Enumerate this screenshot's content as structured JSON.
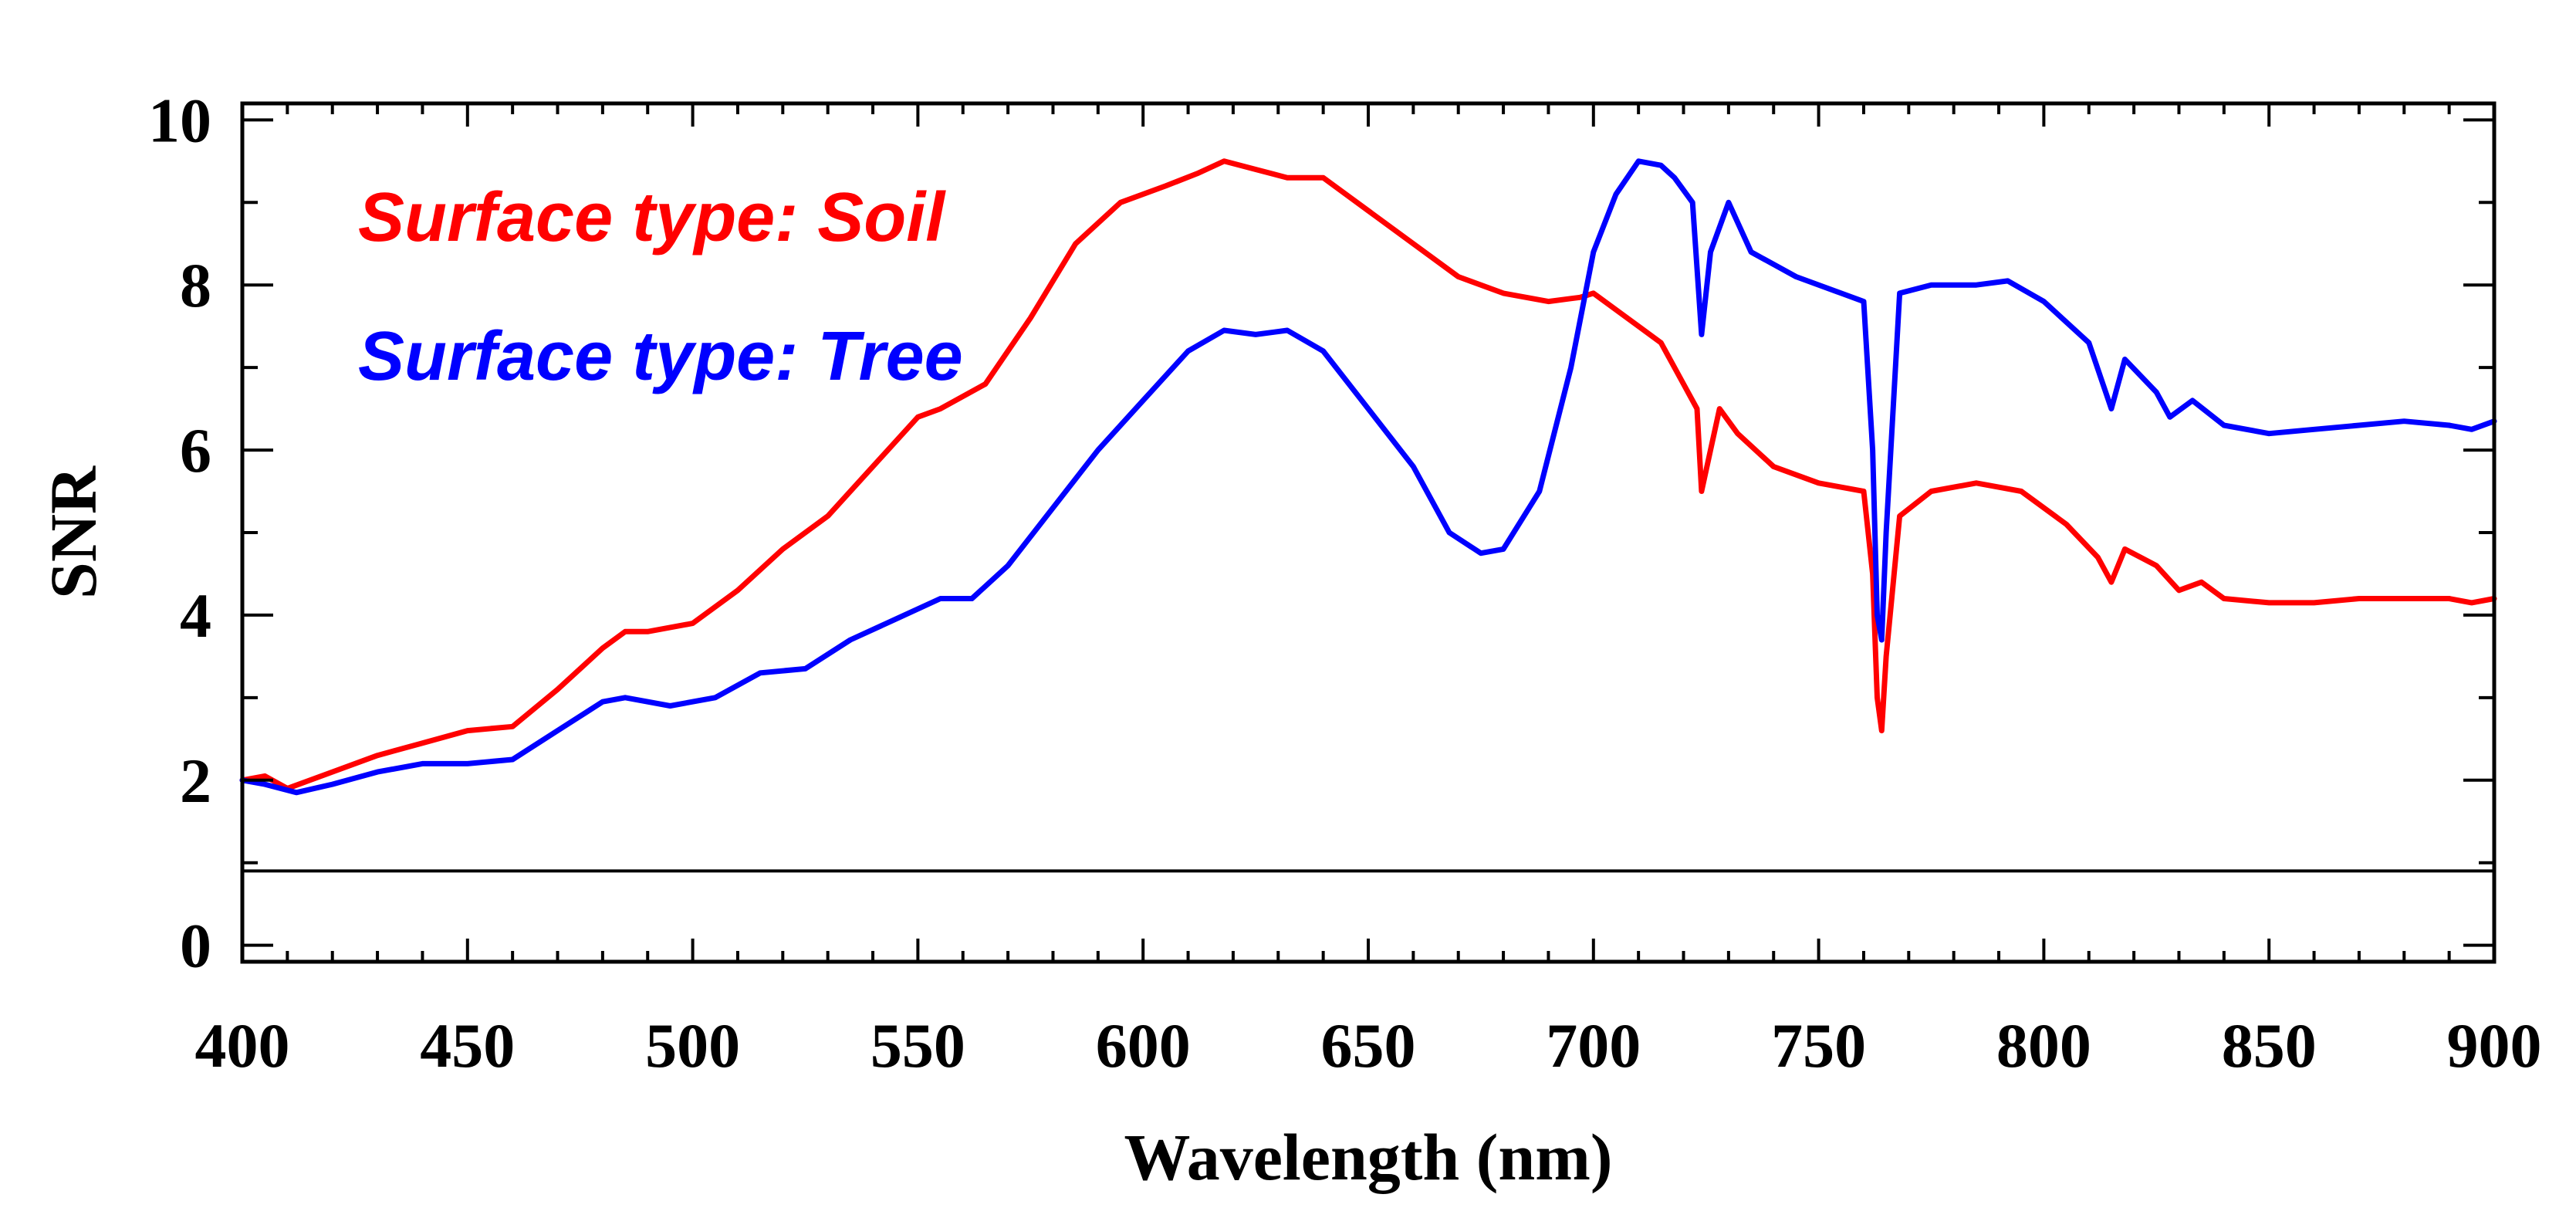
{
  "chart_data": {
    "type": "line",
    "title": "",
    "xlabel": "Wavelength (nm)",
    "ylabel": "SNR",
    "xlim": [
      400,
      900
    ],
    "ylim": [
      -0.2,
      10.2
    ],
    "x_ticks": [
      400,
      450,
      500,
      550,
      600,
      650,
      700,
      750,
      800,
      850,
      900
    ],
    "y_ticks": [
      0,
      2,
      4,
      6,
      8,
      10
    ],
    "reference_line_y": 0.9,
    "legend_position": "top-left",
    "series": [
      {
        "name": "Surface type: Soil",
        "color": "#ff0000",
        "points": [
          [
            400,
            2.0
          ],
          [
            405,
            2.05
          ],
          [
            410,
            1.9
          ],
          [
            420,
            2.1
          ],
          [
            430,
            2.3
          ],
          [
            440,
            2.45
          ],
          [
            450,
            2.6
          ],
          [
            460,
            2.65
          ],
          [
            470,
            3.1
          ],
          [
            480,
            3.6
          ],
          [
            485,
            3.8
          ],
          [
            490,
            3.8
          ],
          [
            500,
            3.9
          ],
          [
            510,
            4.3
          ],
          [
            520,
            4.8
          ],
          [
            530,
            5.2
          ],
          [
            540,
            5.8
          ],
          [
            550,
            6.4
          ],
          [
            555,
            6.5
          ],
          [
            565,
            6.8
          ],
          [
            575,
            7.6
          ],
          [
            585,
            8.5
          ],
          [
            595,
            9.0
          ],
          [
            605,
            9.2
          ],
          [
            612,
            9.35
          ],
          [
            618,
            9.5
          ],
          [
            625,
            9.4
          ],
          [
            632,
            9.3
          ],
          [
            640,
            9.3
          ],
          [
            650,
            8.9
          ],
          [
            660,
            8.5
          ],
          [
            670,
            8.1
          ],
          [
            680,
            7.9
          ],
          [
            690,
            7.8
          ],
          [
            697,
            7.85
          ],
          [
            700,
            7.9
          ],
          [
            705,
            7.7
          ],
          [
            710,
            7.5
          ],
          [
            715,
            7.3
          ],
          [
            720,
            6.8
          ],
          [
            723,
            6.5
          ],
          [
            724,
            5.5
          ],
          [
            726,
            6.0
          ],
          [
            728,
            6.5
          ],
          [
            732,
            6.2
          ],
          [
            740,
            5.8
          ],
          [
            750,
            5.6
          ],
          [
            760,
            5.5
          ],
          [
            762,
            4.5
          ],
          [
            763,
            3.0
          ],
          [
            764,
            2.6
          ],
          [
            765,
            3.5
          ],
          [
            768,
            5.2
          ],
          [
            775,
            5.5
          ],
          [
            785,
            5.6
          ],
          [
            795,
            5.5
          ],
          [
            805,
            5.1
          ],
          [
            812,
            4.7
          ],
          [
            815,
            4.4
          ],
          [
            818,
            4.8
          ],
          [
            825,
            4.6
          ],
          [
            830,
            4.3
          ],
          [
            835,
            4.4
          ],
          [
            840,
            4.2
          ],
          [
            850,
            4.15
          ],
          [
            860,
            4.15
          ],
          [
            870,
            4.2
          ],
          [
            880,
            4.2
          ],
          [
            890,
            4.2
          ],
          [
            895,
            4.15
          ],
          [
            900,
            4.2
          ]
        ]
      },
      {
        "name": "Surface type: Tree",
        "color": "#0000ff",
        "points": [
          [
            400,
            2.0
          ],
          [
            405,
            1.95
          ],
          [
            412,
            1.85
          ],
          [
            420,
            1.95
          ],
          [
            430,
            2.1
          ],
          [
            440,
            2.2
          ],
          [
            450,
            2.2
          ],
          [
            460,
            2.25
          ],
          [
            470,
            2.6
          ],
          [
            480,
            2.95
          ],
          [
            485,
            3.0
          ],
          [
            495,
            2.9
          ],
          [
            505,
            3.0
          ],
          [
            515,
            3.3
          ],
          [
            525,
            3.35
          ],
          [
            535,
            3.7
          ],
          [
            545,
            3.95
          ],
          [
            555,
            4.2
          ],
          [
            562,
            4.2
          ],
          [
            570,
            4.6
          ],
          [
            580,
            5.3
          ],
          [
            590,
            6.0
          ],
          [
            600,
            6.6
          ],
          [
            610,
            7.2
          ],
          [
            618,
            7.45
          ],
          [
            625,
            7.4
          ],
          [
            632,
            7.45
          ],
          [
            640,
            7.2
          ],
          [
            650,
            6.5
          ],
          [
            660,
            5.8
          ],
          [
            668,
            5.0
          ],
          [
            675,
            4.75
          ],
          [
            680,
            4.8
          ],
          [
            688,
            5.5
          ],
          [
            695,
            7.0
          ],
          [
            700,
            8.4
          ],
          [
            705,
            9.1
          ],
          [
            710,
            9.5
          ],
          [
            715,
            9.45
          ],
          [
            718,
            9.3
          ],
          [
            722,
            9.0
          ],
          [
            724,
            7.4
          ],
          [
            726,
            8.4
          ],
          [
            730,
            9.0
          ],
          [
            735,
            8.4
          ],
          [
            745,
            8.1
          ],
          [
            755,
            7.9
          ],
          [
            760,
            7.8
          ],
          [
            762,
            6.0
          ],
          [
            763,
            4.0
          ],
          [
            764,
            3.7
          ],
          [
            765,
            5.0
          ],
          [
            768,
            7.9
          ],
          [
            775,
            8.0
          ],
          [
            785,
            8.0
          ],
          [
            792,
            8.05
          ],
          [
            800,
            7.8
          ],
          [
            810,
            7.3
          ],
          [
            815,
            6.5
          ],
          [
            818,
            7.1
          ],
          [
            825,
            6.7
          ],
          [
            828,
            6.4
          ],
          [
            833,
            6.6
          ],
          [
            840,
            6.3
          ],
          [
            850,
            6.2
          ],
          [
            860,
            6.25
          ],
          [
            870,
            6.3
          ],
          [
            880,
            6.35
          ],
          [
            890,
            6.3
          ],
          [
            895,
            6.25
          ],
          [
            900,
            6.35
          ]
        ]
      }
    ]
  }
}
